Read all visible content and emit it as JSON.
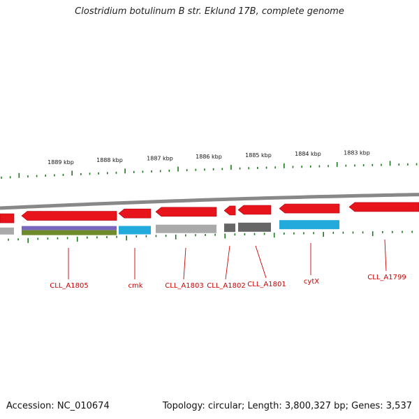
{
  "header": {
    "title": "Clostridium botulinum B str. Eklund 17B, complete genome"
  },
  "footer": {
    "accession": "Accession: NC_010674",
    "summary": "Topology: circular; Length: 3,800,327 bp; Genes: 3,537"
  },
  "map": {
    "kbp_labels": [
      "1889 kbp",
      "1888 kbp",
      "1887 kbp",
      "1886 kbp",
      "1885 kbp",
      "1884 kbp",
      "1883 kbp"
    ],
    "gene_labels": [
      "CLL_A1805",
      "cmk",
      "CLL_A1803",
      "CLL_A1802",
      "CLL_A1801",
      "cytX",
      "CLL_A1799"
    ],
    "colors": {
      "backbone": "#888888",
      "cds": "#e8141c",
      "tick": "#1a7a1a",
      "label": "#cc0000",
      "track_gray": "#aaaaaa",
      "track_darkgray": "#666666",
      "track_blue": "#22aadd",
      "track_purple": "#7766bb",
      "track_olive": "#6e8b2a"
    }
  }
}
